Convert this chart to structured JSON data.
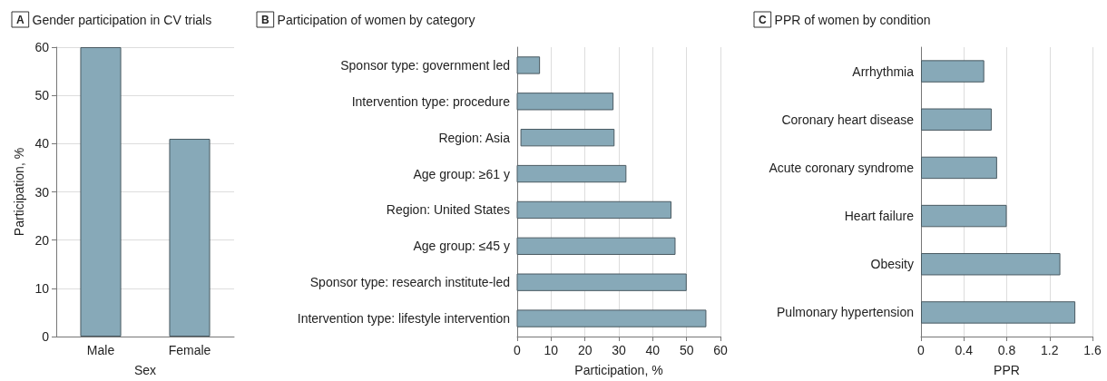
{
  "chart_data": [
    {
      "type": "bar",
      "title": "Gender participation in CV trials",
      "annotations": [
        "A"
      ],
      "xlabel": "Sex",
      "ylabel": "Participation, %",
      "categories": [
        "Male",
        "Female"
      ],
      "values": [
        60,
        41
      ],
      "color": "#87a9b8",
      "ylim": [
        0,
        60
      ],
      "yticks": [
        0,
        10,
        20,
        30,
        40,
        50,
        60
      ],
      "grid": "y"
    },
    {
      "type": "bar",
      "orientation": "horizontal",
      "title": "Participation of women by category",
      "annotations": [
        "B"
      ],
      "xlabel": "Participation, %",
      "categories": [
        "Sponsor type: government led",
        "Intervention type: procedure",
        "Region: Asia",
        "Age group: ≥61 y",
        "Region: United States",
        "Age group: ≤45 y",
        "Sponsor type: research institute-led",
        "Intervention type: lifestyle intervention"
      ],
      "values": [
        6.6,
        28.3,
        27.5,
        32.1,
        45.4,
        46.6,
        49.9,
        55.7
      ],
      "base": [
        0,
        0,
        1.1,
        0,
        0,
        0,
        0,
        0
      ],
      "color": "#87a9b8",
      "xlim": [
        0,
        60
      ],
      "xticks": [
        0,
        10,
        20,
        30,
        40,
        50,
        60
      ],
      "grid": "x"
    },
    {
      "type": "bar",
      "orientation": "horizontal",
      "title": "PPR of women by condition",
      "annotations": [
        "C"
      ],
      "xlabel": "PPR",
      "categories": [
        "Arrhythmia",
        "Coronary heart disease",
        "Acute coronary syndrome",
        "Heart failure",
        "Obesity",
        "Pulmonary hypertension"
      ],
      "values": [
        0.59,
        0.66,
        0.71,
        0.8,
        1.3,
        1.44
      ],
      "color": "#87a9b8",
      "xlim": [
        0,
        1.6
      ],
      "xticks": [
        0,
        0.4,
        0.8,
        1.2,
        1.6
      ],
      "grid": "x"
    }
  ]
}
